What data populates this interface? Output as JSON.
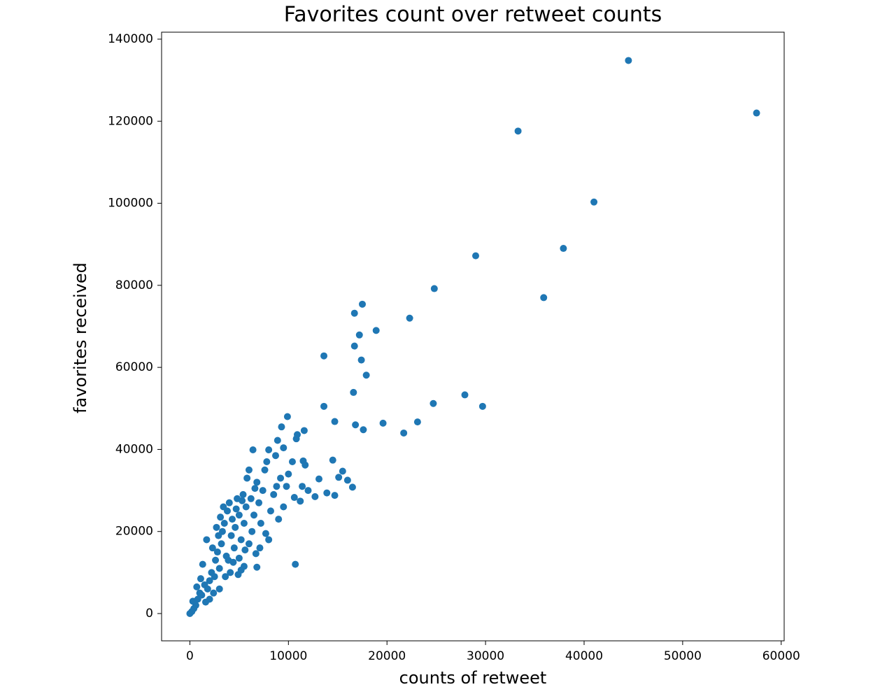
{
  "chart_data": {
    "type": "scatter",
    "title": "Favorites count over retweet counts",
    "xlabel": "counts of retweet",
    "ylabel": "favorites received",
    "color": "#1f77b4",
    "xlim": [
      -2870,
      60300
    ],
    "ylim": [
      -6650,
      141700
    ],
    "xticks": [
      0,
      10000,
      20000,
      30000,
      40000,
      50000,
      60000
    ],
    "yticks": [
      0,
      20000,
      40000,
      60000,
      80000,
      100000,
      120000,
      140000
    ],
    "x": [
      57500,
      44500,
      33300,
      41000,
      37900,
      29000,
      35900,
      24800,
      22300,
      17500,
      16700,
      18900,
      17200,
      16700,
      17400,
      13600,
      17900,
      16600,
      27900,
      29700,
      24700,
      13600,
      14700,
      16800,
      19600,
      23100,
      17600,
      21700,
      9900,
      11600,
      10900,
      10800,
      9300,
      8900,
      9500,
      6400,
      8000,
      8700,
      10400,
      11500,
      11700,
      14500,
      15500,
      15100,
      16000,
      16500,
      14700,
      13900,
      13100,
      12700,
      11200,
      10600,
      11400,
      12000,
      10700,
      6800,
      6700,
      5200,
      0,
      200,
      400,
      600,
      300,
      800,
      1000,
      700,
      1200,
      1500,
      1800,
      2000,
      1100,
      1300,
      1700,
      2200,
      2500,
      2600,
      2800,
      3000,
      3200,
      3300,
      3500,
      3700,
      3800,
      4000,
      4200,
      4300,
      4500,
      4600,
      4800,
      5000,
      5200,
      5400,
      5500,
      5700,
      5800,
      6000,
      6200,
      6300,
      6500,
      6800,
      7000,
      7200,
      7400,
      7600,
      7800,
      8000,
      8200,
      8500,
      8800,
      9000,
      9200,
      9500,
      9800,
      10000,
      3000,
      2400,
      3600,
      4100,
      4400,
      5000,
      5600,
      6000,
      2000,
      1600,
      2900,
      3400,
      4700,
      5300,
      3900,
      4900,
      5500,
      3100,
      2700,
      2300,
      6600,
      7100,
      7700
    ],
    "values": [
      122000,
      134800,
      117600,
      100300,
      89000,
      87200,
      77000,
      79200,
      72000,
      75400,
      73200,
      69000,
      67900,
      65200,
      61800,
      62800,
      58100,
      53900,
      53300,
      50500,
      51200,
      50500,
      46800,
      46000,
      46400,
      46700,
      44800,
      44000,
      48000,
      44600,
      43600,
      42600,
      45500,
      42200,
      40400,
      39900,
      39900,
      38500,
      37000,
      37200,
      36200,
      37400,
      34700,
      33200,
      32500,
      30800,
      28800,
      29400,
      32800,
      28500,
      27400,
      28300,
      31000,
      30000,
      12000,
      11300,
      14600,
      10600,
      0,
      500,
      1200,
      2000,
      3000,
      3500,
      5000,
      6500,
      4500,
      7000,
      6000,
      8000,
      8500,
      12000,
      18000,
      10000,
      9000,
      13000,
      15000,
      11000,
      17000,
      20000,
      22000,
      14000,
      25000,
      27000,
      19000,
      23000,
      16000,
      21000,
      28000,
      24000,
      18000,
      29000,
      22000,
      26000,
      33000,
      35000,
      28000,
      20000,
      24000,
      32000,
      27000,
      22000,
      30000,
      35000,
      37000,
      18000,
      25000,
      29000,
      31000,
      23000,
      33000,
      26000,
      31000,
      34000,
      6000,
      5000,
      9000,
      10000,
      12500,
      13500,
      15500,
      17000,
      3500,
      2800,
      19000,
      26000,
      25500,
      27500,
      13000,
      9500,
      11500,
      23500,
      21000,
      16000,
      30500,
      16000,
      19500
    ]
  }
}
